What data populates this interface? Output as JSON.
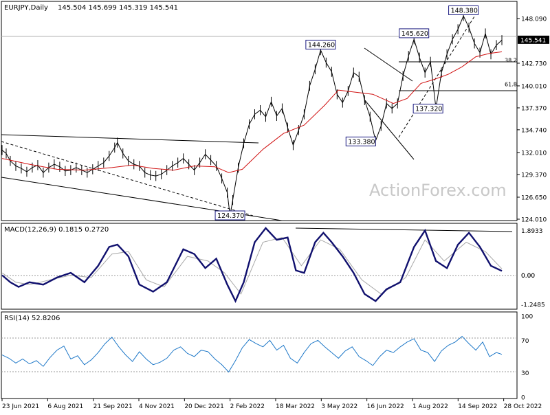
{
  "chart_data": {
    "type": "line",
    "header": {
      "symbol": "EURJPY,Daily",
      "ohlc": "145.504 145.699 145.319 145.541"
    },
    "watermark": "ActionForex.com",
    "x_labels": [
      "23 Jun 2021",
      "6 Aug 2021",
      "21 Sep 2021",
      "4 Nov 2021",
      "20 Dec 2021",
      "2 Feb 2022",
      "18 Mar 2022",
      "3 May 2022",
      "16 Jun 2022",
      "1 Aug 2022",
      "14 Sep 2022",
      "28 Oct 2022"
    ],
    "price": {
      "ylim": [
        124.01,
        148.5
      ],
      "ticks": [
        "148.090",
        "145.541",
        "142.730",
        "140.010",
        "137.370",
        "134.740",
        "132.010",
        "129.370",
        "126.650",
        "124.010"
      ],
      "last": "145.541",
      "close_series": [
        {
          "t": 0,
          "v": 132.3
        },
        {
          "t": 3,
          "v": 131.9
        },
        {
          "t": 6,
          "v": 131.0
        },
        {
          "t": 10,
          "v": 130.4
        },
        {
          "t": 14,
          "v": 130.1
        },
        {
          "t": 18,
          "v": 129.7
        },
        {
          "t": 22,
          "v": 130.2
        },
        {
          "t": 26,
          "v": 130.5
        },
        {
          "t": 30,
          "v": 129.6
        },
        {
          "t": 34,
          "v": 130.2
        },
        {
          "t": 38,
          "v": 130.6
        },
        {
          "t": 42,
          "v": 130.3
        },
        {
          "t": 46,
          "v": 129.8
        },
        {
          "t": 50,
          "v": 129.9
        },
        {
          "t": 54,
          "v": 130.2
        },
        {
          "t": 58,
          "v": 129.9
        },
        {
          "t": 62,
          "v": 129.6
        },
        {
          "t": 66,
          "v": 130.0
        },
        {
          "t": 70,
          "v": 130.4
        },
        {
          "t": 74,
          "v": 130.8
        },
        {
          "t": 78,
          "v": 131.6
        },
        {
          "t": 82,
          "v": 132.6
        },
        {
          "t": 84,
          "v": 133.2
        },
        {
          "t": 88,
          "v": 131.9
        },
        {
          "t": 92,
          "v": 131.0
        },
        {
          "t": 96,
          "v": 130.6
        },
        {
          "t": 100,
          "v": 130.4
        },
        {
          "t": 104,
          "v": 129.6
        },
        {
          "t": 108,
          "v": 129.3
        },
        {
          "t": 112,
          "v": 129.2
        },
        {
          "t": 116,
          "v": 129.4
        },
        {
          "t": 120,
          "v": 129.9
        },
        {
          "t": 124,
          "v": 130.4
        },
        {
          "t": 128,
          "v": 130.8
        },
        {
          "t": 132,
          "v": 131.3
        },
        {
          "t": 136,
          "v": 130.6
        },
        {
          "t": 140,
          "v": 129.9
        },
        {
          "t": 144,
          "v": 130.8
        },
        {
          "t": 148,
          "v": 131.8
        },
        {
          "t": 152,
          "v": 131.1
        },
        {
          "t": 156,
          "v": 130.4
        },
        {
          "t": 160,
          "v": 128.9
        },
        {
          "t": 164,
          "v": 127.2
        },
        {
          "t": 166,
          "v": 124.4
        },
        {
          "t": 168,
          "v": 126.3
        },
        {
          "t": 172,
          "v": 130.2
        },
        {
          "t": 176,
          "v": 133.1
        },
        {
          "t": 180,
          "v": 135.4
        },
        {
          "t": 184,
          "v": 136.6
        },
        {
          "t": 188,
          "v": 137.1
        },
        {
          "t": 192,
          "v": 136.3
        },
        {
          "t": 196,
          "v": 138.1
        },
        {
          "t": 200,
          "v": 136.4
        },
        {
          "t": 204,
          "v": 137.3
        },
        {
          "t": 208,
          "v": 135.0
        },
        {
          "t": 212,
          "v": 132.9
        },
        {
          "t": 216,
          "v": 134.7
        },
        {
          "t": 220,
          "v": 136.6
        },
        {
          "t": 224,
          "v": 140.0
        },
        {
          "t": 228,
          "v": 142.0
        },
        {
          "t": 232,
          "v": 144.3
        },
        {
          "t": 236,
          "v": 142.8
        },
        {
          "t": 240,
          "v": 141.7
        },
        {
          "t": 244,
          "v": 139.0
        },
        {
          "t": 248,
          "v": 138.0
        },
        {
          "t": 252,
          "v": 139.4
        },
        {
          "t": 256,
          "v": 141.6
        },
        {
          "t": 260,
          "v": 141.1
        },
        {
          "t": 264,
          "v": 138.3
        },
        {
          "t": 268,
          "v": 136.3
        },
        {
          "t": 272,
          "v": 133.4
        },
        {
          "t": 276,
          "v": 135.2
        },
        {
          "t": 280,
          "v": 137.9
        },
        {
          "t": 284,
          "v": 137.3
        },
        {
          "t": 288,
          "v": 137.9
        },
        {
          "t": 292,
          "v": 141.2
        },
        {
          "t": 296,
          "v": 143.6
        },
        {
          "t": 300,
          "v": 145.6
        },
        {
          "t": 304,
          "v": 143.4
        },
        {
          "t": 308,
          "v": 141.6
        },
        {
          "t": 312,
          "v": 142.9
        },
        {
          "t": 316,
          "v": 137.3
        },
        {
          "t": 320,
          "v": 141.6
        },
        {
          "t": 324,
          "v": 143.8
        },
        {
          "t": 328,
          "v": 145.6
        },
        {
          "t": 332,
          "v": 146.8
        },
        {
          "t": 336,
          "v": 148.4
        },
        {
          "t": 340,
          "v": 147.0
        },
        {
          "t": 344,
          "v": 145.1
        },
        {
          "t": 348,
          "v": 144.0
        },
        {
          "t": 352,
          "v": 146.3
        },
        {
          "t": 356,
          "v": 143.8
        },
        {
          "t": 360,
          "v": 144.9
        },
        {
          "t": 364,
          "v": 145.5
        }
      ],
      "ma_series": [
        {
          "t": 0,
          "v": 131.3
        },
        {
          "t": 20,
          "v": 130.6
        },
        {
          "t": 40,
          "v": 130.0
        },
        {
          "t": 60,
          "v": 129.9
        },
        {
          "t": 80,
          "v": 130.2
        },
        {
          "t": 95,
          "v": 130.5
        },
        {
          "t": 110,
          "v": 130.1
        },
        {
          "t": 125,
          "v": 129.9
        },
        {
          "t": 140,
          "v": 130.4
        },
        {
          "t": 155,
          "v": 130.3
        },
        {
          "t": 165,
          "v": 129.6
        },
        {
          "t": 175,
          "v": 130.0
        },
        {
          "t": 190,
          "v": 132.4
        },
        {
          "t": 205,
          "v": 134.3
        },
        {
          "t": 220,
          "v": 135.3
        },
        {
          "t": 235,
          "v": 137.7
        },
        {
          "t": 245,
          "v": 139.5
        },
        {
          "t": 255,
          "v": 139.3
        },
        {
          "t": 270,
          "v": 139.0
        },
        {
          "t": 285,
          "v": 137.9
        },
        {
          "t": 295,
          "v": 138.5
        },
        {
          "t": 305,
          "v": 140.3
        },
        {
          "t": 315,
          "v": 140.8
        },
        {
          "t": 325,
          "v": 141.4
        },
        {
          "t": 335,
          "v": 142.3
        },
        {
          "t": 345,
          "v": 143.5
        },
        {
          "t": 355,
          "v": 143.9
        },
        {
          "t": 364,
          "v": 144.1
        }
      ],
      "annotations": [
        {
          "text": "148.380",
          "t": 336,
          "v": 148.38
        },
        {
          "text": "145.620",
          "t": 300,
          "v": 145.62
        },
        {
          "text": "144.260",
          "t": 232,
          "v": 144.26
        },
        {
          "text": "137.320",
          "t": 316,
          "v": 137.32
        },
        {
          "text": "133.380",
          "t": 272,
          "v": 133.38
        },
        {
          "text": "124.370",
          "t": 166,
          "v": 124.37
        }
      ],
      "fib_labels": [
        {
          "text": "38.2",
          "v": 142.7
        },
        {
          "text": "61.8",
          "v": 139.8
        }
      ]
    },
    "macd": {
      "title": "MACD(12,26,9) 0.1815 0.2720",
      "ylim": [
        -1.3,
        2.0
      ],
      "ticks": [
        "1.8933",
        "0.00",
        "-1.2485"
      ],
      "zero_dup": "0.00",
      "macd_series": [
        {
          "t": 0,
          "v": 0.0
        },
        {
          "t": 6,
          "v": -0.3
        },
        {
          "t": 12,
          "v": -0.5
        },
        {
          "t": 20,
          "v": -0.3
        },
        {
          "t": 30,
          "v": -0.4
        },
        {
          "t": 40,
          "v": -0.1
        },
        {
          "t": 50,
          "v": 0.1
        },
        {
          "t": 60,
          "v": -0.3
        },
        {
          "t": 70,
          "v": 0.4
        },
        {
          "t": 78,
          "v": 1.2
        },
        {
          "t": 84,
          "v": 1.3
        },
        {
          "t": 92,
          "v": 0.8
        },
        {
          "t": 100,
          "v": -0.4
        },
        {
          "t": 110,
          "v": -0.7
        },
        {
          "t": 120,
          "v": -0.3
        },
        {
          "t": 132,
          "v": 1.1
        },
        {
          "t": 140,
          "v": 0.9
        },
        {
          "t": 148,
          "v": 0.3
        },
        {
          "t": 156,
          "v": 0.7
        },
        {
          "t": 164,
          "v": -0.4
        },
        {
          "t": 170,
          "v": -1.1
        },
        {
          "t": 176,
          "v": -0.3
        },
        {
          "t": 184,
          "v": 1.4
        },
        {
          "t": 192,
          "v": 2.0
        },
        {
          "t": 200,
          "v": 1.5
        },
        {
          "t": 208,
          "v": 1.6
        },
        {
          "t": 214,
          "v": 0.2
        },
        {
          "t": 220,
          "v": 0.1
        },
        {
          "t": 228,
          "v": 1.4
        },
        {
          "t": 234,
          "v": 1.8
        },
        {
          "t": 240,
          "v": 1.4
        },
        {
          "t": 248,
          "v": 0.8
        },
        {
          "t": 256,
          "v": 0.1
        },
        {
          "t": 264,
          "v": -0.8
        },
        {
          "t": 272,
          "v": -1.1
        },
        {
          "t": 280,
          "v": -0.6
        },
        {
          "t": 290,
          "v": -0.3
        },
        {
          "t": 300,
          "v": 1.2
        },
        {
          "t": 308,
          "v": 1.9
        },
        {
          "t": 316,
          "v": 0.6
        },
        {
          "t": 324,
          "v": 0.3
        },
        {
          "t": 332,
          "v": 1.3
        },
        {
          "t": 340,
          "v": 1.8
        },
        {
          "t": 348,
          "v": 1.2
        },
        {
          "t": 356,
          "v": 0.4
        },
        {
          "t": 364,
          "v": 0.18
        }
      ],
      "signal_series": [
        {
          "t": 0,
          "v": 0.1
        },
        {
          "t": 10,
          "v": -0.3
        },
        {
          "t": 20,
          "v": -0.4
        },
        {
          "t": 35,
          "v": -0.2
        },
        {
          "t": 50,
          "v": 0.0
        },
        {
          "t": 65,
          "v": -0.1
        },
        {
          "t": 80,
          "v": 0.9
        },
        {
          "t": 92,
          "v": 1.0
        },
        {
          "t": 105,
          "v": -0.2
        },
        {
          "t": 118,
          "v": -0.5
        },
        {
          "t": 135,
          "v": 0.8
        },
        {
          "t": 150,
          "v": 0.6
        },
        {
          "t": 162,
          "v": 0.1
        },
        {
          "t": 174,
          "v": -0.8
        },
        {
          "t": 190,
          "v": 1.4
        },
        {
          "t": 204,
          "v": 1.6
        },
        {
          "t": 218,
          "v": 0.4
        },
        {
          "t": 232,
          "v": 1.5
        },
        {
          "t": 246,
          "v": 1.1
        },
        {
          "t": 262,
          "v": -0.2
        },
        {
          "t": 276,
          "v": -0.8
        },
        {
          "t": 294,
          "v": -0.1
        },
        {
          "t": 308,
          "v": 1.5
        },
        {
          "t": 322,
          "v": 0.6
        },
        {
          "t": 338,
          "v": 1.4
        },
        {
          "t": 352,
          "v": 1.0
        },
        {
          "t": 364,
          "v": 0.27
        }
      ]
    },
    "rsi": {
      "title": "RSI(14) 52.8206",
      "ylim": [
        0,
        100
      ],
      "ticks": [
        "100",
        "70",
        "30",
        "0"
      ],
      "series": [
        {
          "t": 0,
          "v": 52
        },
        {
          "t": 5,
          "v": 48
        },
        {
          "t": 10,
          "v": 42
        },
        {
          "t": 15,
          "v": 47
        },
        {
          "t": 20,
          "v": 41
        },
        {
          "t": 25,
          "v": 45
        },
        {
          "t": 30,
          "v": 38
        },
        {
          "t": 35,
          "v": 49
        },
        {
          "t": 40,
          "v": 58
        },
        {
          "t": 45,
          "v": 63
        },
        {
          "t": 50,
          "v": 47
        },
        {
          "t": 55,
          "v": 51
        },
        {
          "t": 60,
          "v": 40
        },
        {
          "t": 65,
          "v": 46
        },
        {
          "t": 70,
          "v": 55
        },
        {
          "t": 75,
          "v": 66
        },
        {
          "t": 80,
          "v": 74
        },
        {
          "t": 85,
          "v": 62
        },
        {
          "t": 90,
          "v": 52
        },
        {
          "t": 95,
          "v": 44
        },
        {
          "t": 100,
          "v": 56
        },
        {
          "t": 105,
          "v": 47
        },
        {
          "t": 110,
          "v": 40
        },
        {
          "t": 115,
          "v": 43
        },
        {
          "t": 120,
          "v": 48
        },
        {
          "t": 125,
          "v": 58
        },
        {
          "t": 130,
          "v": 62
        },
        {
          "t": 135,
          "v": 54
        },
        {
          "t": 140,
          "v": 50
        },
        {
          "t": 145,
          "v": 58
        },
        {
          "t": 150,
          "v": 56
        },
        {
          "t": 155,
          "v": 47
        },
        {
          "t": 160,
          "v": 40
        },
        {
          "t": 165,
          "v": 31
        },
        {
          "t": 170,
          "v": 45
        },
        {
          "t": 175,
          "v": 61
        },
        {
          "t": 180,
          "v": 71
        },
        {
          "t": 185,
          "v": 66
        },
        {
          "t": 190,
          "v": 62
        },
        {
          "t": 195,
          "v": 70
        },
        {
          "t": 200,
          "v": 58
        },
        {
          "t": 205,
          "v": 64
        },
        {
          "t": 210,
          "v": 48
        },
        {
          "t": 215,
          "v": 42
        },
        {
          "t": 220,
          "v": 55
        },
        {
          "t": 225,
          "v": 66
        },
        {
          "t": 230,
          "v": 70
        },
        {
          "t": 235,
          "v": 62
        },
        {
          "t": 240,
          "v": 55
        },
        {
          "t": 245,
          "v": 48
        },
        {
          "t": 250,
          "v": 57
        },
        {
          "t": 255,
          "v": 62
        },
        {
          "t": 260,
          "v": 50
        },
        {
          "t": 265,
          "v": 45
        },
        {
          "t": 270,
          "v": 39
        },
        {
          "t": 275,
          "v": 50
        },
        {
          "t": 280,
          "v": 58
        },
        {
          "t": 285,
          "v": 55
        },
        {
          "t": 290,
          "v": 62
        },
        {
          "t": 295,
          "v": 68
        },
        {
          "t": 300,
          "v": 72
        },
        {
          "t": 305,
          "v": 58
        },
        {
          "t": 310,
          "v": 55
        },
        {
          "t": 315,
          "v": 44
        },
        {
          "t": 320,
          "v": 57
        },
        {
          "t": 325,
          "v": 64
        },
        {
          "t": 330,
          "v": 68
        },
        {
          "t": 335,
          "v": 75
        },
        {
          "t": 340,
          "v": 66
        },
        {
          "t": 345,
          "v": 58
        },
        {
          "t": 350,
          "v": 68
        },
        {
          "t": 355,
          "v": 50
        },
        {
          "t": 360,
          "v": 55
        },
        {
          "t": 364,
          "v": 52.8
        }
      ]
    },
    "colors": {
      "price": "#000000",
      "ma": "#d01010",
      "macd": "#10106e",
      "signal": "#a8a8a8",
      "rsi": "#1e78c8",
      "annotation_border": "#1a1a80",
      "last_label_bg": "#000000",
      "watermark": "#b8b8b8"
    }
  }
}
